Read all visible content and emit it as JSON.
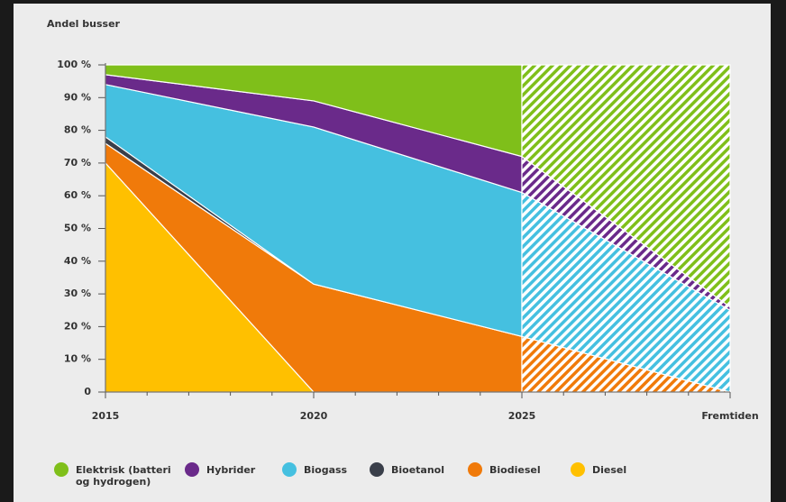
{
  "chart_data": {
    "type": "stacked_area",
    "y_axis_label": "Andel busser",
    "categories": [
      "2015",
      "2020",
      "2025",
      "Fremtiden"
    ],
    "ylim": [
      0,
      100
    ],
    "yticks": [
      0,
      {
        "value": 10,
        "label": "10 %"
      },
      {
        "value": 20,
        "label": "20 %"
      },
      {
        "value": 30,
        "label": "30 %"
      },
      {
        "value": 40,
        "label": "40 %"
      },
      {
        "value": 50,
        "label": "50 %"
      },
      {
        "value": 60,
        "label": "60 %"
      },
      {
        "value": 70,
        "label": "70 %"
      },
      {
        "value": 80,
        "label": "80 %"
      },
      {
        "value": 90,
        "label": "90 %"
      },
      {
        "value": 100,
        "label": "100 %"
      }
    ],
    "series": [
      {
        "name": "Diesel",
        "color": "#ffc000",
        "values": [
          70,
          0,
          0,
          0
        ]
      },
      {
        "name": "Biodiesel",
        "color": "#f07a0a",
        "values": [
          6,
          33,
          17,
          0
        ]
      },
      {
        "name": "Bioetanol",
        "color": "#3a3f4a",
        "values": [
          2,
          0,
          0,
          0
        ]
      },
      {
        "name": "Biogass",
        "color": "#45c0e0",
        "values": [
          16,
          48,
          44,
          25
        ]
      },
      {
        "name": "Hybrider",
        "color": "#6a2a8a",
        "values": [
          3,
          8,
          11,
          1
        ]
      },
      {
        "name": "Elektrisk (batteri og hydrogen)",
        "color": "#7fbf1a",
        "values": [
          3,
          11,
          28,
          74
        ]
      }
    ]
  }
}
